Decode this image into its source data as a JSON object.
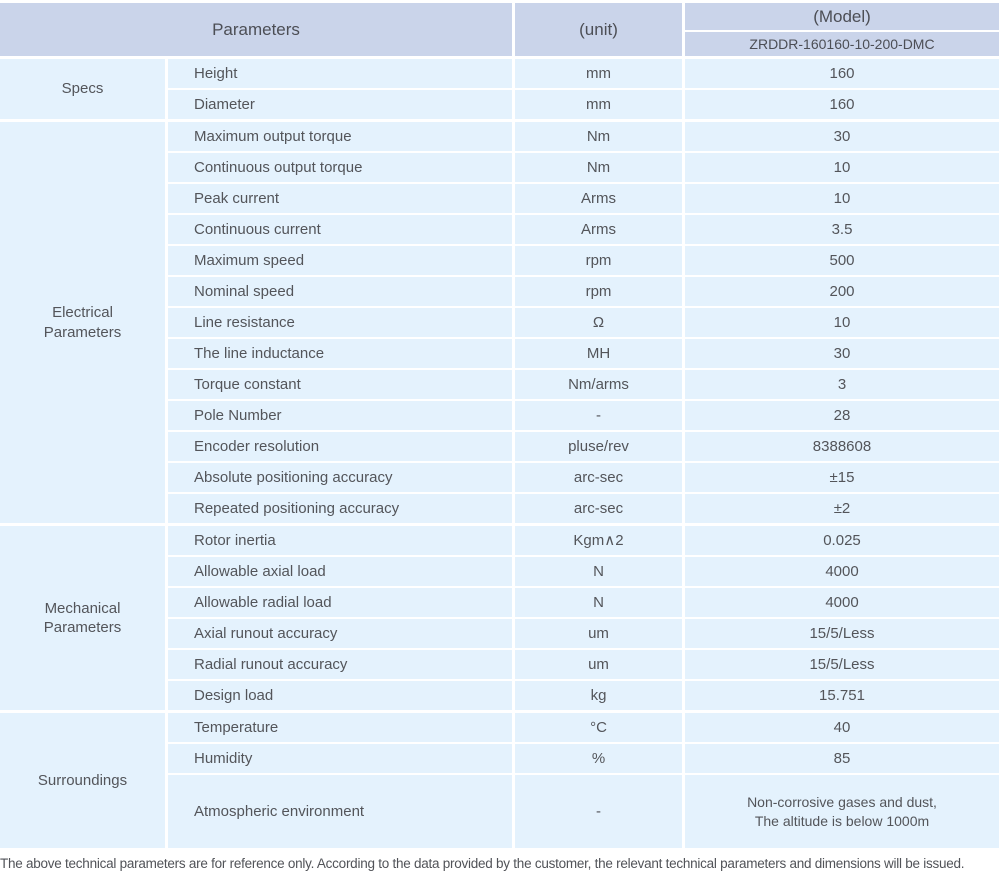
{
  "colors": {
    "header_bg": "#cad4ea",
    "body_bg": "#e4f2fd",
    "divider": "#ffffff",
    "text": "#53555a"
  },
  "header": {
    "parameters_label": "Parameters",
    "unit_label": "(unit)",
    "model_label": "(Model)",
    "model_value": "ZRDDR-160160-10-200-DMC"
  },
  "sections": [
    {
      "category": "Specs",
      "rows": [
        {
          "name": "Height",
          "unit": "mm",
          "value": "160"
        },
        {
          "name": "Diameter",
          "unit": "mm",
          "value": "160"
        }
      ]
    },
    {
      "category": "Electrical\nParameters",
      "rows": [
        {
          "name": "Maximum output torque",
          "unit": "Nm",
          "value": "30"
        },
        {
          "name": "Continuous output torque",
          "unit": "Nm",
          "value": "10"
        },
        {
          "name": "Peak current",
          "unit": "Arms",
          "value": "10"
        },
        {
          "name": "Continuous current",
          "unit": "Arms",
          "value": "3.5"
        },
        {
          "name": "Maximum speed",
          "unit": "rpm",
          "value": "500"
        },
        {
          "name": "Nominal speed",
          "unit": "rpm",
          "value": "200"
        },
        {
          "name": "Line resistance",
          "unit": "Ω",
          "value": "10"
        },
        {
          "name": "The line inductance",
          "unit": "MH",
          "value": "30"
        },
        {
          "name": "Torque constant",
          "unit": "Nm/arms",
          "value": "3"
        },
        {
          "name": "Pole Number",
          "unit": "-",
          "value": "28"
        },
        {
          "name": "Encoder resolution",
          "unit": "pluse/rev",
          "value": "8388608"
        },
        {
          "name": "Absolute positioning accuracy",
          "unit": "arc-sec",
          "value": "±15"
        },
        {
          "name": "Repeated positioning accuracy",
          "unit": "arc-sec",
          "value": "±2"
        }
      ]
    },
    {
      "category": "Mechanical\nParameters",
      "rows": [
        {
          "name": "Rotor inertia",
          "unit": "Kgm∧2",
          "value": "0.025"
        },
        {
          "name": "Allowable axial load",
          "unit": "N",
          "value": "4000"
        },
        {
          "name": "Allowable radial load",
          "unit": "N",
          "value": "4000"
        },
        {
          "name": "Axial runout accuracy",
          "unit": "um",
          "value": "15/5/Less"
        },
        {
          "name": "Radial runout accuracy",
          "unit": "um",
          "value": "15/5/Less"
        },
        {
          "name": "Design load",
          "unit": "kg",
          "value": "15.751"
        }
      ]
    },
    {
      "category": "Surroundings",
      "rows": [
        {
          "name": "Temperature",
          "unit": "°C",
          "value": "40"
        },
        {
          "name": "Humidity",
          "unit": "%",
          "value": "85"
        },
        {
          "name": "Atmospheric environment",
          "unit": "-",
          "value": "Non-corrosive gases and dust,\nThe altitude is below 1000m"
        }
      ]
    }
  ],
  "footer": {
    "note": "The above technical parameters are for reference only. According to the data provided by the customer, the relevant technical parameters and dimensions will be issued."
  }
}
